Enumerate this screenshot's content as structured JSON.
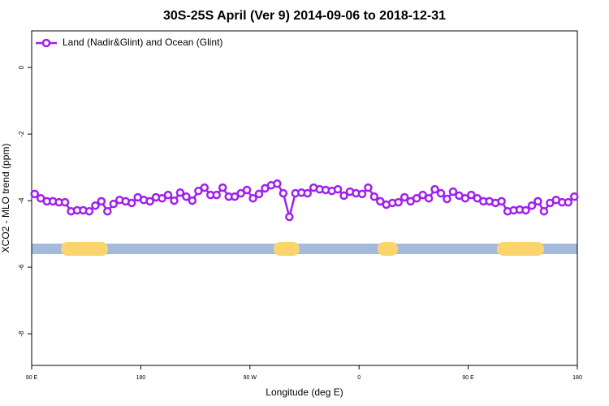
{
  "chart_data": {
    "type": "line",
    "title": "30S-25S April (Ver 9)   2014-09-06 to 2018-12-31",
    "xlabel": "Longitude (deg E)",
    "ylabel": "XCO2 - MLO trend (ppm)",
    "xlim": [
      90,
      540
    ],
    "xticks": [
      {
        "value": 90,
        "label": "90 E"
      },
      180,
      {
        "value": 270,
        "label": "90 W"
      },
      {
        "value": 360,
        "label": "0"
      },
      {
        "value": 450,
        "label": "90 E"
      },
      {
        "value": 540,
        "label": "180"
      }
    ],
    "ylim": [
      -8.95,
      1.1
    ],
    "yticks": [
      0,
      -2,
      -4,
      -6,
      -8
    ],
    "legend": "upper left",
    "x": [
      92.5,
      97.5,
      102.5,
      107.5,
      112.5,
      117.5,
      122.5,
      127.5,
      132.5,
      137.5,
      142.5,
      147.5,
      152.5,
      157.5,
      162.5,
      167.5,
      172.5,
      177.5,
      182.5,
      187.5,
      192.5,
      197.5,
      202.5,
      207.5,
      212.5,
      217.5,
      222.5,
      227.5,
      232.5,
      237.5,
      242.5,
      247.5,
      252.5,
      257.5,
      262.5,
      267.5,
      272.5,
      277.5,
      282.5,
      287.5,
      292.5,
      297.5,
      302.5,
      307.5,
      312.5,
      317.5,
      322.5,
      327.5,
      332.5,
      337.5,
      342.5,
      347.5,
      352.5,
      357.5,
      362.5,
      367.5,
      372.5,
      377.5,
      382.5,
      387.5,
      392.5,
      397.5,
      402.5,
      407.5,
      412.5,
      417.5,
      422.5,
      427.5,
      432.5,
      437.5,
      442.5,
      447.5,
      452.5,
      457.5,
      462.5,
      467.5,
      472.5,
      477.5,
      482.5,
      487.5,
      492.5,
      497.5,
      502.5,
      507.5,
      512.5,
      517.5,
      522.5,
      527.5,
      532.5,
      537.5
    ],
    "series": [
      {
        "name": "Land (Nadir&Glint) and Ocean (Glint)",
        "color": "#a020f0",
        "values": [
          -3.8,
          -3.93,
          -4.02,
          -4.02,
          -4.05,
          -4.05,
          -4.32,
          -4.29,
          -4.29,
          -4.32,
          -4.15,
          -4.02,
          -4.32,
          -4.1,
          -3.98,
          -4.02,
          -4.07,
          -3.9,
          -3.98,
          -4.02,
          -3.9,
          -3.93,
          -3.83,
          -4.0,
          -3.76,
          -3.88,
          -4.0,
          -3.71,
          -3.61,
          -3.83,
          -3.83,
          -3.61,
          -3.88,
          -3.88,
          -3.78,
          -3.68,
          -3.93,
          -3.8,
          -3.63,
          -3.54,
          -3.49,
          -3.78,
          -4.49,
          -3.78,
          -3.76,
          -3.78,
          -3.61,
          -3.66,
          -3.68,
          -3.71,
          -3.66,
          -3.85,
          -3.73,
          -3.78,
          -3.8,
          -3.61,
          -3.88,
          -4.02,
          -4.12,
          -4.07,
          -4.05,
          -3.9,
          -4.02,
          -3.93,
          -3.83,
          -3.93,
          -3.66,
          -3.78,
          -3.95,
          -3.73,
          -3.85,
          -3.93,
          -3.83,
          -3.93,
          -4.02,
          -4.02,
          -4.07,
          -4.02,
          -4.32,
          -4.29,
          -4.27,
          -4.29,
          -4.15,
          -4.02,
          -4.32,
          -4.07,
          -3.98,
          -4.05,
          -4.05,
          -3.88
        ]
      }
    ]
  }
}
